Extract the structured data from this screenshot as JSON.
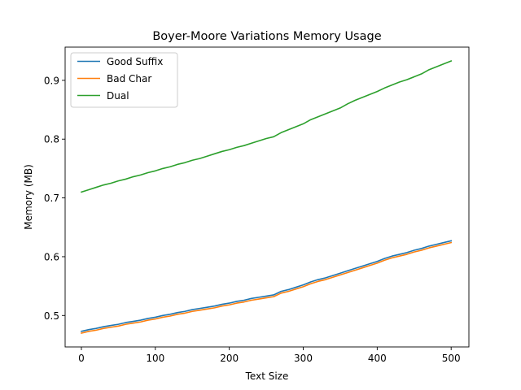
{
  "chart_data": {
    "type": "line",
    "title": "Boyer-Moore Variations Memory Usage",
    "xlabel": "Text Size",
    "ylabel": "Memory (MB)",
    "xlim": [
      -22,
      524
    ],
    "ylim": [
      0.4465,
      0.9565
    ],
    "xticks": [
      0,
      100,
      200,
      300,
      400,
      500
    ],
    "yticks": [
      0.5,
      0.6,
      0.7,
      0.8,
      0.9
    ],
    "grid": false,
    "legend_position": "top-left",
    "x": [
      0,
      10,
      20,
      30,
      40,
      50,
      60,
      70,
      80,
      90,
      100,
      110,
      120,
      130,
      140,
      150,
      160,
      170,
      180,
      190,
      200,
      210,
      220,
      230,
      240,
      250,
      260,
      270,
      280,
      290,
      300,
      310,
      320,
      330,
      340,
      350,
      360,
      370,
      380,
      390,
      400,
      410,
      420,
      430,
      440,
      450,
      460,
      470,
      480,
      490,
      500
    ],
    "series": [
      {
        "name": "Good Suffix",
        "color": "#1f77b4",
        "values": [
          0.473,
          0.476,
          0.478,
          0.481,
          0.483,
          0.485,
          0.488,
          0.49,
          0.492,
          0.495,
          0.497,
          0.5,
          0.502,
          0.505,
          0.507,
          0.51,
          0.512,
          0.514,
          0.516,
          0.519,
          0.521,
          0.524,
          0.526,
          0.529,
          0.531,
          0.533,
          0.535,
          0.541,
          0.544,
          0.548,
          0.552,
          0.557,
          0.561,
          0.564,
          0.568,
          0.572,
          0.576,
          0.58,
          0.584,
          0.588,
          0.592,
          0.597,
          0.601,
          0.604,
          0.607,
          0.611,
          0.614,
          0.618,
          0.621,
          0.624,
          0.627
        ]
      },
      {
        "name": "Bad Char",
        "color": "#ff7f0e",
        "values": [
          0.47,
          0.473,
          0.475,
          0.478,
          0.48,
          0.482,
          0.485,
          0.487,
          0.489,
          0.492,
          0.494,
          0.497,
          0.499,
          0.502,
          0.504,
          0.507,
          0.509,
          0.511,
          0.513,
          0.516,
          0.518,
          0.521,
          0.523,
          0.526,
          0.528,
          0.53,
          0.532,
          0.538,
          0.541,
          0.545,
          0.549,
          0.554,
          0.558,
          0.561,
          0.565,
          0.569,
          0.573,
          0.577,
          0.581,
          0.585,
          0.589,
          0.594,
          0.598,
          0.601,
          0.604,
          0.608,
          0.611,
          0.615,
          0.618,
          0.621,
          0.624
        ]
      },
      {
        "name": "Dual",
        "color": "#2ca02c",
        "values": [
          0.71,
          0.714,
          0.718,
          0.722,
          0.725,
          0.729,
          0.732,
          0.736,
          0.739,
          0.743,
          0.746,
          0.75,
          0.753,
          0.757,
          0.76,
          0.764,
          0.767,
          0.771,
          0.775,
          0.779,
          0.782,
          0.786,
          0.789,
          0.793,
          0.797,
          0.801,
          0.804,
          0.811,
          0.816,
          0.821,
          0.826,
          0.833,
          0.838,
          0.843,
          0.848,
          0.853,
          0.86,
          0.866,
          0.871,
          0.876,
          0.881,
          0.887,
          0.892,
          0.897,
          0.901,
          0.906,
          0.911,
          0.918,
          0.923,
          0.928,
          0.933
        ]
      }
    ]
  }
}
